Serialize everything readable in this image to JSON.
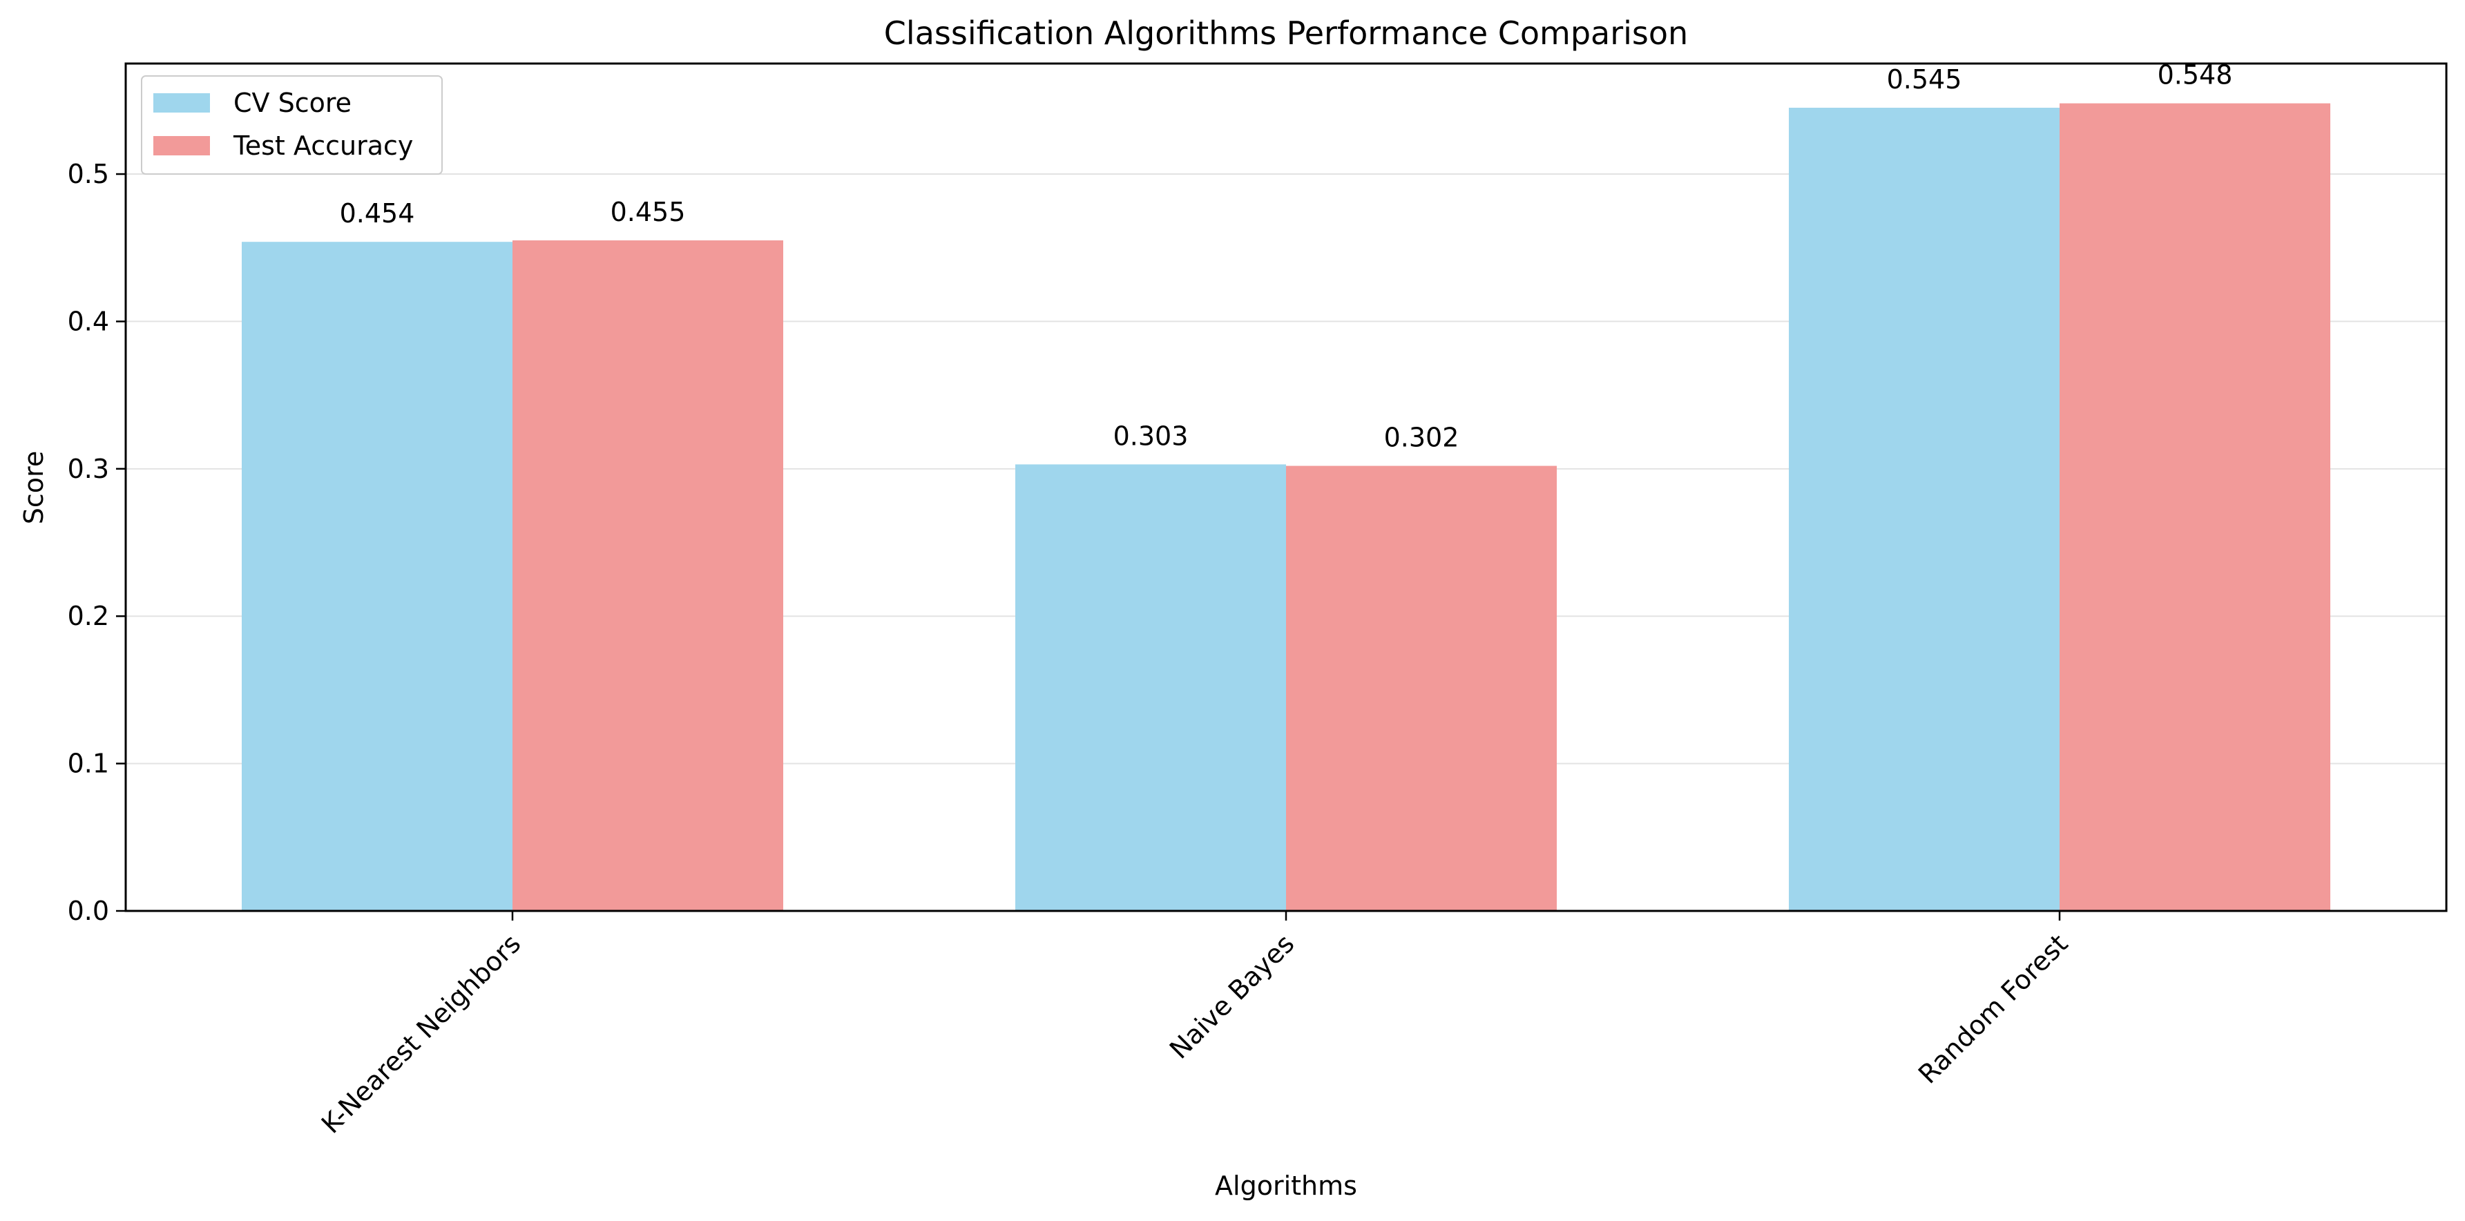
{
  "chart_data": {
    "type": "bar",
    "title": "Classification Algorithms Performance Comparison",
    "xlabel": "Algorithms",
    "ylabel": "Score",
    "categories": [
      "K-Nearest Neighbors",
      "Naive Bayes",
      "Random Forest"
    ],
    "series": [
      {
        "name": "CV Score",
        "values": [
          0.454,
          0.303,
          0.545
        ],
        "color": "#9fd6ed"
      },
      {
        "name": "Test Accuracy",
        "values": [
          0.455,
          0.302,
          0.548
        ],
        "color": "#f29a99"
      }
    ],
    "data_labels": [
      [
        "0.454",
        "0.303",
        "0.545"
      ],
      [
        "0.455",
        "0.302",
        "0.548"
      ]
    ],
    "ylim": [
      0,
      0.575
    ],
    "yticks": [
      0.0,
      0.1,
      0.2,
      0.3,
      0.4,
      0.5
    ],
    "ytick_labels": [
      "0.0",
      "0.1",
      "0.2",
      "0.3",
      "0.4",
      "0.5"
    ],
    "grid": "horizontal",
    "legend_position": "top-left",
    "x_tick_rotation": "45"
  }
}
